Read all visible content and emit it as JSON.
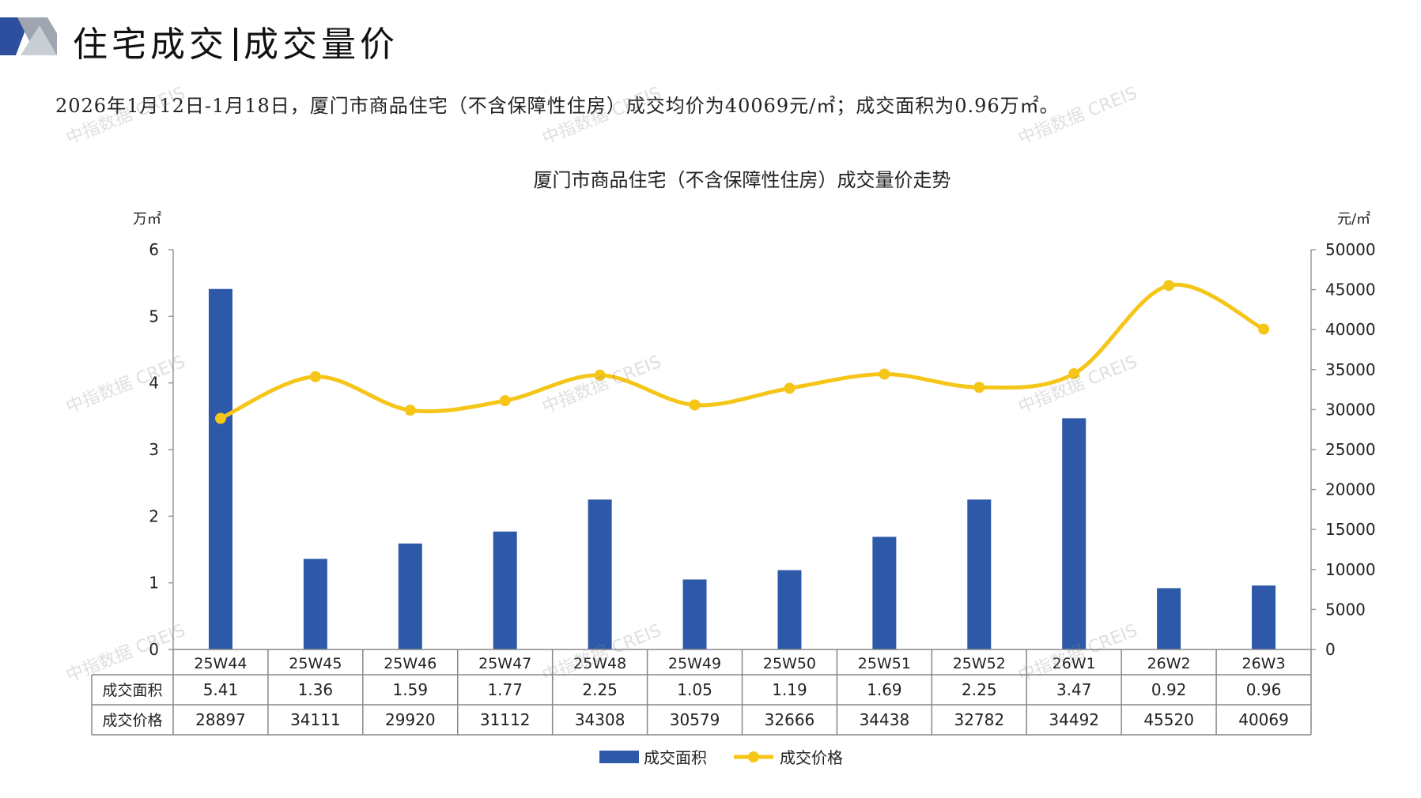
{
  "header": {
    "title_part1": "住宅成交",
    "title_part2": "成交量价",
    "summary": "2026年1月12日-1月18日，厦门市商品住宅（不含保障性住房）成交均价为40069元/㎡；成交面积为0.96万㎡。"
  },
  "watermark": "中指数据 CREIS",
  "colors": {
    "bar": "#2E59A8",
    "line": "#F5C518",
    "deco_dark": "#2E4E9E",
    "deco_light": "#9FA6B2"
  },
  "chart_data": {
    "type": "bar+line",
    "title": "厦门市商品住宅（不含保障性住房）成交量价走势",
    "categories": [
      "25W44",
      "25W45",
      "25W46",
      "25W47",
      "25W48",
      "25W49",
      "25W50",
      "25W51",
      "25W52",
      "26W1",
      "26W2",
      "26W3"
    ],
    "series": [
      {
        "name": "成交面积",
        "type": "bar",
        "axis": "left",
        "values": [
          5.41,
          1.36,
          1.59,
          1.77,
          2.25,
          1.05,
          1.19,
          1.69,
          2.25,
          3.47,
          0.92,
          0.96
        ]
      },
      {
        "name": "成交价格",
        "type": "line",
        "axis": "right",
        "values": [
          28897,
          34111,
          29920,
          31112,
          34308,
          30579,
          32666,
          34438,
          32782,
          34492,
          45520,
          40069
        ]
      }
    ],
    "y_left": {
      "unit": "万㎡",
      "min": 0,
      "max": 6,
      "ticks": [
        0,
        1,
        2,
        3,
        4,
        5,
        6
      ]
    },
    "y_right": {
      "unit": "元/㎡",
      "min": 0,
      "max": 50000,
      "ticks": [
        0,
        5000,
        10000,
        15000,
        20000,
        25000,
        30000,
        35000,
        40000,
        45000,
        50000
      ]
    },
    "table_rows": [
      {
        "label": "成交面积",
        "values": [
          "5.41",
          "1.36",
          "1.59",
          "1.77",
          "2.25",
          "1.05",
          "1.19",
          "1.69",
          "2.25",
          "3.47",
          "0.92",
          "0.96"
        ]
      },
      {
        "label": "成交价格",
        "values": [
          "28897",
          "34111",
          "29920",
          "31112",
          "34308",
          "30579",
          "32666",
          "34438",
          "32782",
          "34492",
          "45520",
          "40069"
        ]
      }
    ],
    "legend": [
      "成交面积",
      "成交价格"
    ],
    "legend_position": "bottom",
    "grid": false
  }
}
